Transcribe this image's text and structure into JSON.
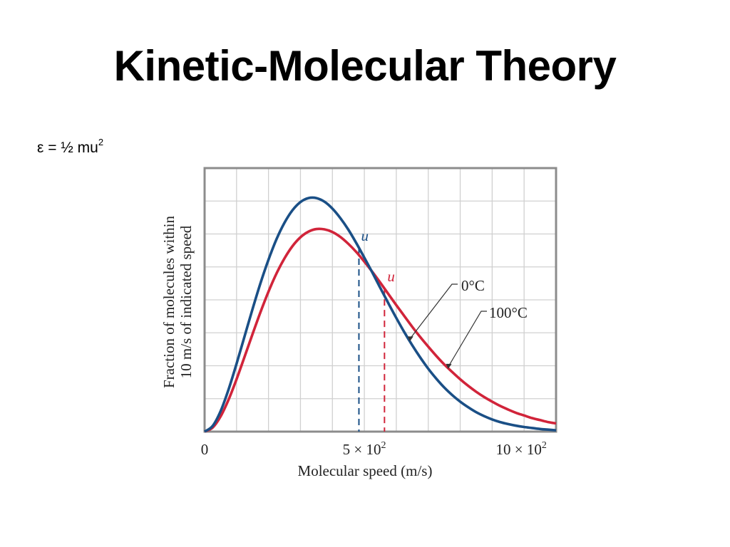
{
  "slide": {
    "title": "Kinetic-Molecular Theory",
    "equation_main": "ε = ½ mu",
    "equation_exponent": "2"
  },
  "chart_data": {
    "type": "line",
    "title": "",
    "xlabel": "Molecular speed (m/s)",
    "ylabel_line1": "Fraction of molecules within",
    "ylabel_line2": "10 m/s of indicated speed",
    "xlim": [
      0,
      1100
    ],
    "ylim": [
      0,
      8
    ],
    "grid": true,
    "x_ticks": [
      {
        "value": 0,
        "label": "0",
        "exponent": ""
      },
      {
        "value": 500,
        "label": "5 × 10",
        "exponent": "2"
      },
      {
        "value": 1000,
        "label": "10 × 10",
        "exponent": "2"
      }
    ],
    "series": [
      {
        "name": "0°C",
        "color": "#1a4f86",
        "mean_speed": 483,
        "mean_label": "u",
        "x": [
          0,
          25,
          50,
          75,
          100,
          125,
          150,
          175,
          200,
          225,
          250,
          275,
          300,
          325,
          350,
          375,
          400,
          425,
          450,
          475,
          500,
          525,
          550,
          575,
          600,
          625,
          650,
          675,
          700,
          725,
          750,
          775,
          800,
          825,
          850,
          875,
          900,
          925,
          950,
          975,
          1000,
          1025,
          1050,
          1075,
          1100
        ],
        "y": [
          0,
          0.17,
          0.62,
          1.28,
          2.06,
          2.89,
          3.72,
          4.51,
          5.22,
          5.84,
          6.34,
          6.72,
          6.97,
          7.09,
          7.09,
          6.98,
          6.77,
          6.48,
          6.13,
          5.72,
          5.28,
          4.83,
          4.36,
          3.9,
          3.45,
          3.02,
          2.62,
          2.25,
          1.91,
          1.61,
          1.34,
          1.11,
          0.91,
          0.74,
          0.59,
          0.47,
          0.37,
          0.29,
          0.23,
          0.18,
          0.14,
          0.11,
          0.08,
          0.06,
          0.04
        ]
      },
      {
        "name": "100°C",
        "color": "#d1243a",
        "mean_speed": 563,
        "mean_label": "u",
        "x": [
          0,
          25,
          50,
          75,
          100,
          125,
          150,
          175,
          200,
          225,
          250,
          275,
          300,
          325,
          350,
          375,
          400,
          425,
          450,
          475,
          500,
          525,
          550,
          575,
          600,
          625,
          650,
          675,
          700,
          725,
          750,
          775,
          800,
          825,
          850,
          875,
          900,
          925,
          950,
          975,
          1000,
          1025,
          1050,
          1075,
          1100
        ],
        "y": [
          0,
          0.12,
          0.46,
          0.97,
          1.59,
          2.27,
          2.96,
          3.63,
          4.25,
          4.8,
          5.26,
          5.63,
          5.9,
          6.07,
          6.15,
          6.14,
          6.06,
          5.91,
          5.7,
          5.45,
          5.16,
          4.85,
          4.52,
          4.18,
          3.84,
          3.51,
          3.18,
          2.87,
          2.58,
          2.3,
          2.04,
          1.81,
          1.59,
          1.39,
          1.21,
          1.05,
          0.91,
          0.78,
          0.67,
          0.57,
          0.49,
          0.41,
          0.35,
          0.29,
          0.25
        ]
      }
    ]
  }
}
